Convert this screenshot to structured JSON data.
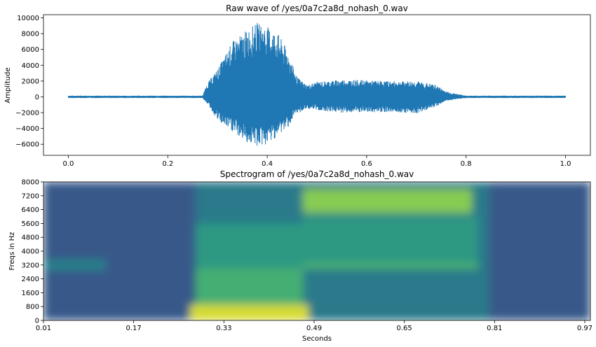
{
  "chart_data": [
    {
      "type": "line",
      "title": "Raw wave of /yes/0a7c2a8d_nohash_0.wav",
      "xlabel": "",
      "ylabel": "Amplitude",
      "xlim": [
        -0.05,
        1.05
      ],
      "ylim": [
        -7400,
        10400
      ],
      "x_ticks": [
        "0.0",
        "0.2",
        "0.4",
        "0.6",
        "0.8",
        "1.0"
      ],
      "y_ticks": [
        "−6000",
        "−4000",
        "−2000",
        "0",
        "2000",
        "4000",
        "6000",
        "8000",
        "10000"
      ],
      "series_color": "#1f77b4",
      "envelope": {
        "x": [
          0.0,
          0.27,
          0.28,
          0.3,
          0.33,
          0.36,
          0.38,
          0.4,
          0.42,
          0.44,
          0.46,
          0.48,
          0.5,
          0.55,
          0.6,
          0.65,
          0.7,
          0.74,
          0.76,
          0.78,
          0.8,
          1.0
        ],
        "upper": [
          150,
          150,
          1800,
          3500,
          7000,
          8500,
          9400,
          8900,
          8200,
          6000,
          2500,
          1500,
          1900,
          2200,
          2100,
          2000,
          2000,
          1500,
          700,
          400,
          150,
          150
        ],
        "lower": [
          -150,
          -150,
          -900,
          -3000,
          -4500,
          -5800,
          -6300,
          -6100,
          -5000,
          -4000,
          -2200,
          -1500,
          -1700,
          -2000,
          -2000,
          -1900,
          -2100,
          -1200,
          -500,
          -300,
          -150,
          -150
        ]
      }
    },
    {
      "type": "heatmap",
      "title": "Spectrogram of /yes/0a7c2a8d_nohash_0.wav",
      "xlabel": "Seconds",
      "ylabel": "Freqs in Hz",
      "xlim": [
        0.01,
        0.98
      ],
      "ylim": [
        0,
        8000
      ],
      "x_ticks": [
        "0.01",
        "0.17",
        "0.33",
        "0.49",
        "0.65",
        "0.81",
        "0.97"
      ],
      "y_ticks": [
        "0",
        "800",
        "1600",
        "2400",
        "3200",
        "4000",
        "4800",
        "5600",
        "6400",
        "7200",
        "8000"
      ],
      "colormap": "viridis",
      "regions": [
        {
          "t": [
            0.01,
            0.98
          ],
          "f": [
            0,
            8000
          ],
          "level": 0.28
        },
        {
          "t": [
            0.01,
            0.12
          ],
          "f": [
            2900,
            3500
          ],
          "level": 0.45
        },
        {
          "t": [
            0.28,
            0.8
          ],
          "f": [
            0,
            8000
          ],
          "level": 0.42
        },
        {
          "t": [
            0.28,
            0.47
          ],
          "f": [
            1700,
            5600
          ],
          "level": 0.55
        },
        {
          "t": [
            0.28,
            0.47
          ],
          "f": [
            800,
            3000
          ],
          "level": 0.65
        },
        {
          "t": [
            0.27,
            0.48
          ],
          "f": [
            0,
            900
          ],
          "level": 0.95
        },
        {
          "t": [
            0.47,
            0.78
          ],
          "f": [
            3000,
            3300
          ],
          "level": 0.7
        },
        {
          "t": [
            0.47,
            0.78
          ],
          "f": [
            3300,
            6000
          ],
          "level": 0.55
        },
        {
          "t": [
            0.47,
            0.77
          ],
          "f": [
            6200,
            7600
          ],
          "level": 0.82
        }
      ]
    }
  ]
}
